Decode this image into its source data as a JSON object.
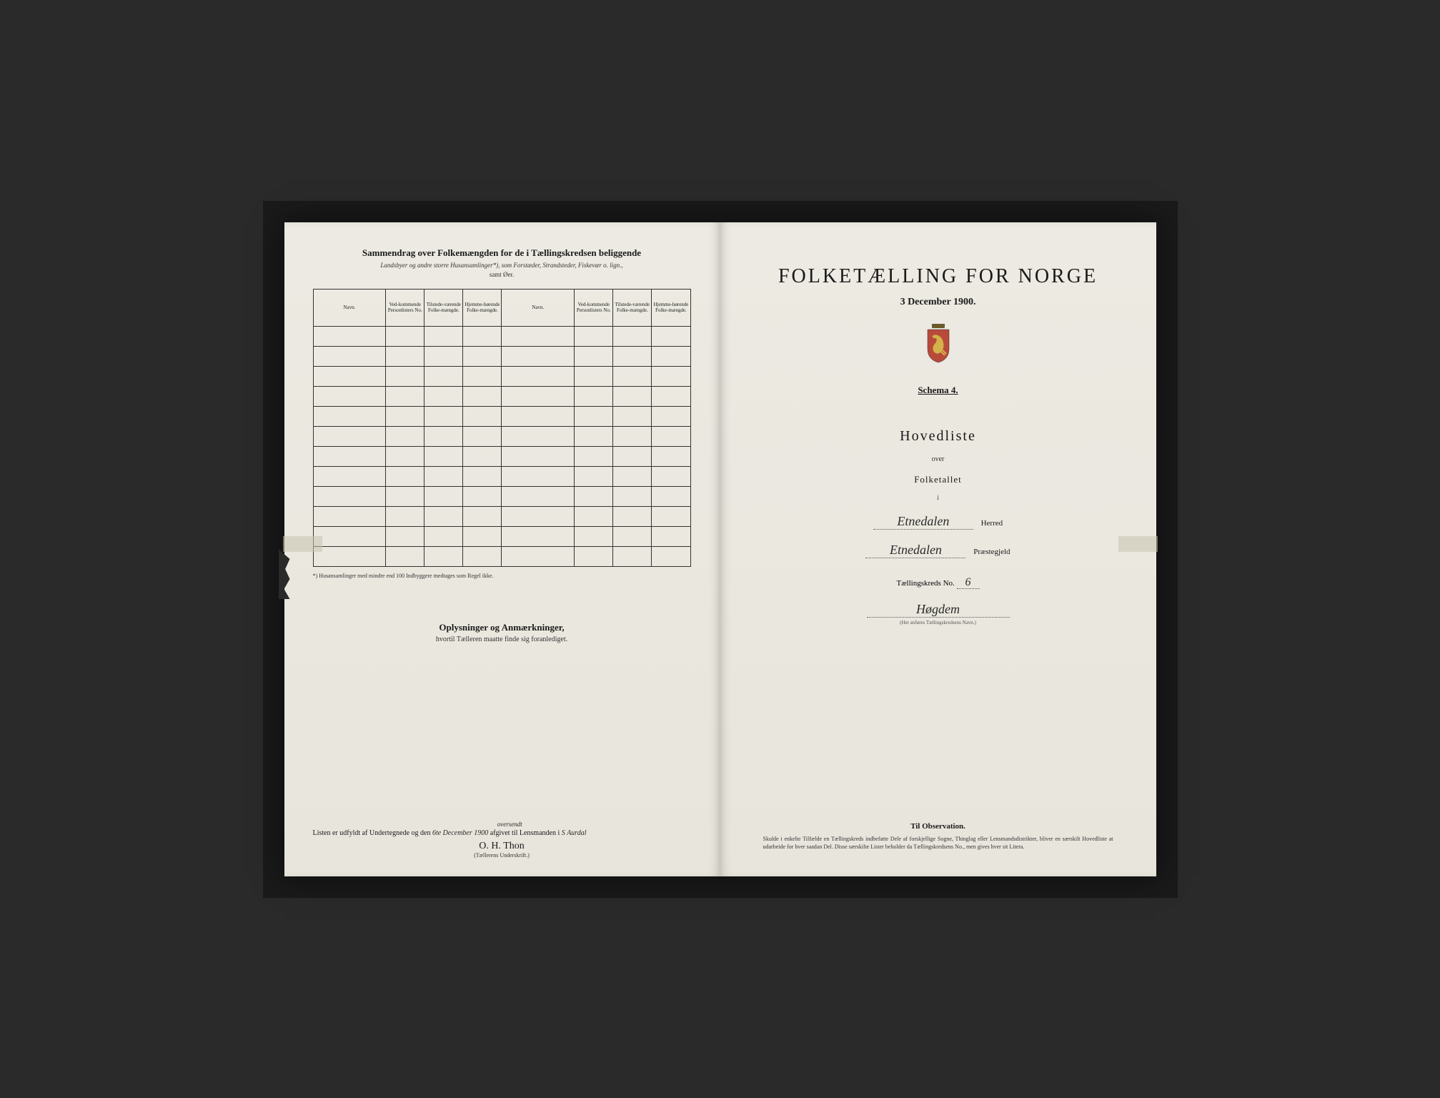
{
  "leftPage": {
    "title": "Sammendrag over Folkemængden for de i Tællingskredsen beliggende",
    "subtitle": "Landsbyer og andre storre Husansamlinger*), som Forstæder, Strandsteder, Fiskevær o. lign.,",
    "subtitle2": "samt Øer.",
    "columns": {
      "navn1": "Navn.",
      "vedkom1": "Ved-kommende Personlisters No.",
      "tilstede1": "Tilstede-værende Folke-mængde.",
      "hjemme1": "Hjemme-hørende Folke-mængde.",
      "navn2": "Navn.",
      "vedkom2": "Ved-kommende Personlisters No.",
      "tilstede2": "Tilstede-værende Folke-mængde.",
      "hjemme2": "Hjemme-hørende Folke-mængde."
    },
    "rowCount": 12,
    "footnote": "*) Husansamlinger med mindre end 100 Indbyggere medtages som Regel ikke.",
    "oplysninger": {
      "title": "Oplysninger og Anmærkninger,",
      "sub": "hvortil Tælleren maatte finde sig foranlediget."
    },
    "bottomLine": {
      "prefix": "Listen er udfyldt af Undertegnede og den ",
      "date": "6te December 1900",
      "mid": " afgivet til Lensmanden i ",
      "place": "S Aurdal",
      "annotation": "oversendt"
    },
    "signature": "O. H. Thon",
    "signatureLabel": "(Tællerens Underskrift.)"
  },
  "rightPage": {
    "mainTitle": "FOLKETÆLLING FOR NORGE",
    "date": "3 December 1900.",
    "schema": "Schema 4.",
    "hovedliste": "Hovedliste",
    "over": "over",
    "folketallet": "Folketallet",
    "i": "i",
    "herred": {
      "value": "Etnedalen",
      "label": "Herred"
    },
    "praestegjeld": {
      "value": "Etnedalen",
      "label": "Præstegjeld"
    },
    "kredsNoLabel": "Tællingskreds No.",
    "kredsNo": "6",
    "kredsName": "Høgdem",
    "kredsNote": "(Her anføres Tællingskredsens Navn.)",
    "observation": {
      "title": "Til Observation.",
      "text": "Skulde i enkelte Tilfælde en Tællingskreds indbefatte Dele af forskjellige Sogne, Thinglag eller Lensmandsdistrikter, bliver en særskilt Hovedliste at udarbeide for hver saadan Del. Disse særskilte Lister beholder da Tællingskredsens No., men gives hver sit Litera."
    }
  },
  "style": {
    "paperColor": "#ebe8e0",
    "inkColor": "#1a1a1a",
    "crestColors": {
      "shield": "#8b7a3a",
      "crown": "#6b5a2a"
    }
  }
}
